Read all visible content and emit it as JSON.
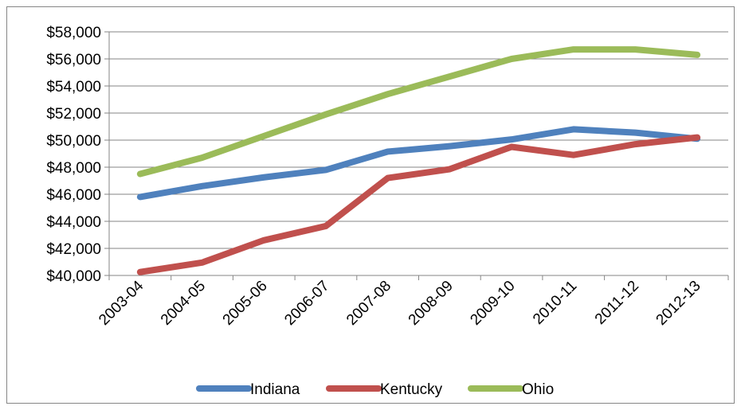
{
  "chart_data": {
    "type": "line",
    "title": "",
    "xlabel": "",
    "ylabel": "",
    "categories": [
      "2003-04",
      "2004-05",
      "2005-06",
      "2006-07",
      "2007-08",
      "2008-09",
      "2009-10",
      "2010-11",
      "2011-12",
      "2012-13"
    ],
    "ylim": [
      40000,
      58000
    ],
    "ytick_step": 2000,
    "y_tick_labels": [
      "$40,000",
      "$42,000",
      "$44,000",
      "$46,000",
      "$48,000",
      "$50,000",
      "$52,000",
      "$54,000",
      "$56,000",
      "$58,000"
    ],
    "grid": "horizontal",
    "legend_position": "bottom",
    "series": [
      {
        "name": "Indiana",
        "color": "#4F81BD",
        "values": [
          45800,
          46600,
          47250,
          47800,
          49150,
          49550,
          50050,
          50800,
          50550,
          50100
        ]
      },
      {
        "name": "Kentucky",
        "color": "#C0504D",
        "values": [
          40250,
          40950,
          42600,
          43650,
          47200,
          47850,
          49500,
          48900,
          49700,
          50200
        ]
      },
      {
        "name": "Ohio",
        "color": "#9BBB59",
        "values": [
          47500,
          48700,
          50300,
          51900,
          53400,
          54700,
          56000,
          56700,
          56700,
          56300
        ]
      }
    ]
  }
}
